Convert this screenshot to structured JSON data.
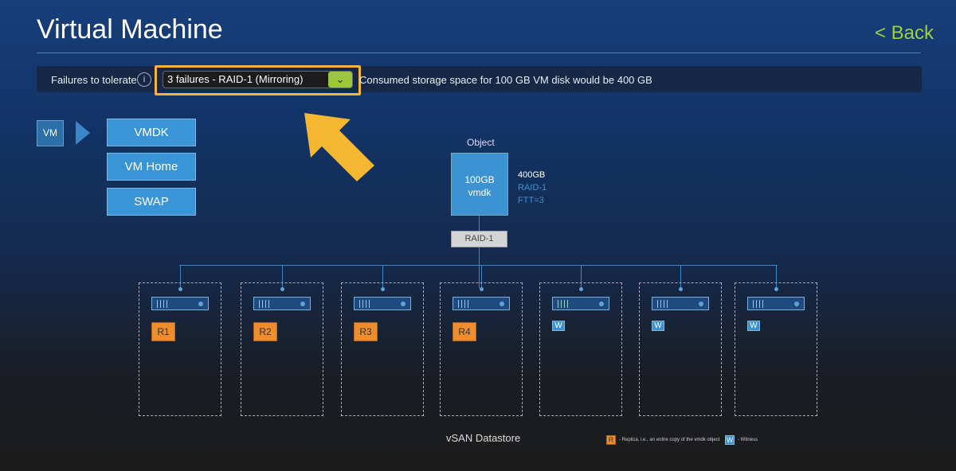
{
  "header": {
    "title": "Virtual Machine",
    "back": "< Back"
  },
  "toolbar": {
    "label": "Failures to tolerate",
    "info_icon": "i",
    "selected": "3 failures - RAID-1 (Mirroring)",
    "dropdown_icon": "chevron-down",
    "message": "Consumed storage space for 100 GB VM disk would be 400 GB",
    "highlight_color": "#f5b731"
  },
  "vm": {
    "label": "VM",
    "components": [
      "VMDK",
      "VM Home",
      "SWAP"
    ]
  },
  "object": {
    "heading": "Object",
    "size": "100GB",
    "name": "vmdk",
    "capacity": "400GB",
    "raid": "RAID-1",
    "ftt": "FTT=3",
    "raid_box": "RAID-1"
  },
  "hosts": [
    {
      "badge": "R1",
      "type": "replica"
    },
    {
      "badge": "R2",
      "type": "replica"
    },
    {
      "badge": "R3",
      "type": "replica"
    },
    {
      "badge": "R4",
      "type": "replica"
    },
    {
      "badge": "W",
      "type": "witness"
    },
    {
      "badge": "W",
      "type": "witness"
    },
    {
      "badge": "W",
      "type": "witness"
    }
  ],
  "datastore": "vSAN Datastore",
  "legend": {
    "r": "R",
    "r_text": "- Replica, i.e., an entire copy of the vmdk object",
    "w": "W",
    "w_text": "- Witness"
  },
  "colors": {
    "accent": "#9fd13b",
    "replica": "#ee8d2e",
    "witness": "#3a92d5",
    "object": "#3d93d2"
  }
}
